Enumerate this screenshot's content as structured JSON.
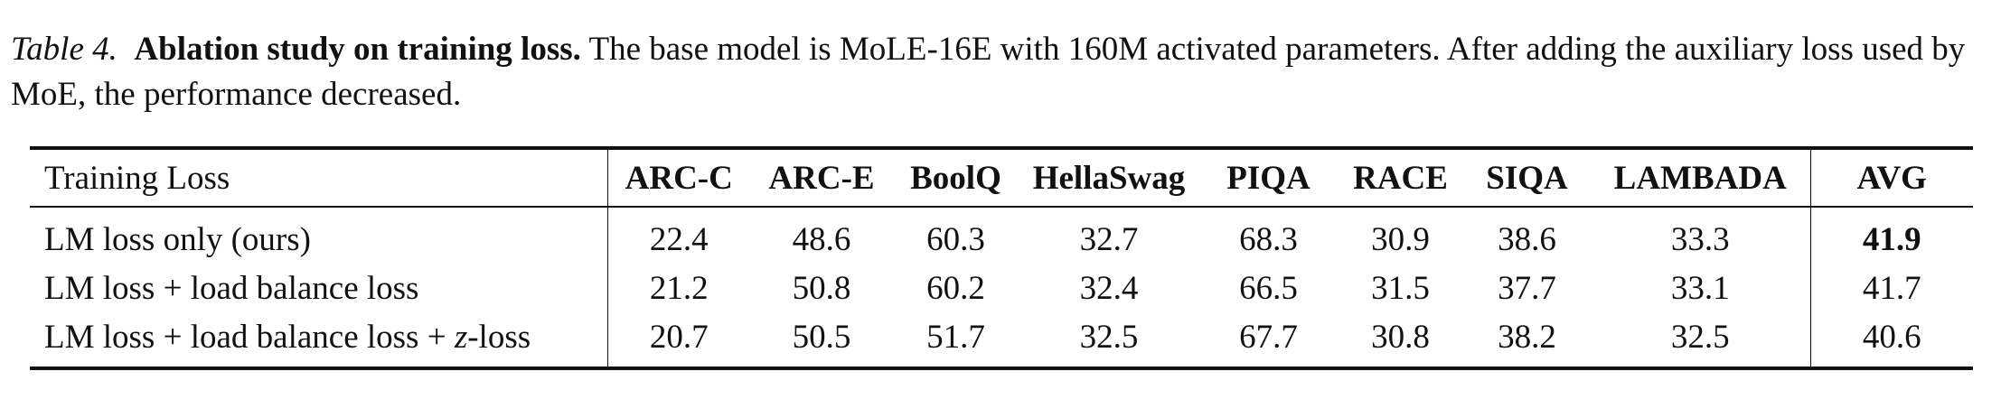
{
  "caption": {
    "label": "Table 4.",
    "title": "Ablation study on training loss.",
    "text": "The base model is MoLE-16E with 160M activated parameters. After adding the auxiliary loss used by MoE, the performance decreased."
  },
  "table": {
    "headers": [
      "Training Loss",
      "ARC-C",
      "ARC-E",
      "BoolQ",
      "HellaSwag",
      "PIQA",
      "RACE",
      "SIQA",
      "LAMBADA",
      "AVG"
    ],
    "rows": [
      {
        "label": "LM loss only (ours)",
        "values": [
          "22.4",
          "48.6",
          "60.3",
          "32.7",
          "68.3",
          "30.9",
          "38.6",
          "33.3",
          "41.9"
        ],
        "bold_avg": true
      },
      {
        "label": "LM loss + load balance loss",
        "values": [
          "21.2",
          "50.8",
          "60.2",
          "32.4",
          "66.5",
          "31.5",
          "37.7",
          "33.1",
          "41.7"
        ],
        "bold_avg": false
      },
      {
        "label_prefix": "LM loss + load balance loss + ",
        "label_var": "z",
        "label_suffix": "-loss",
        "values": [
          "20.7",
          "50.5",
          "51.7",
          "32.5",
          "67.7",
          "30.8",
          "38.2",
          "32.5",
          "40.6"
        ],
        "bold_avg": false
      }
    ]
  }
}
